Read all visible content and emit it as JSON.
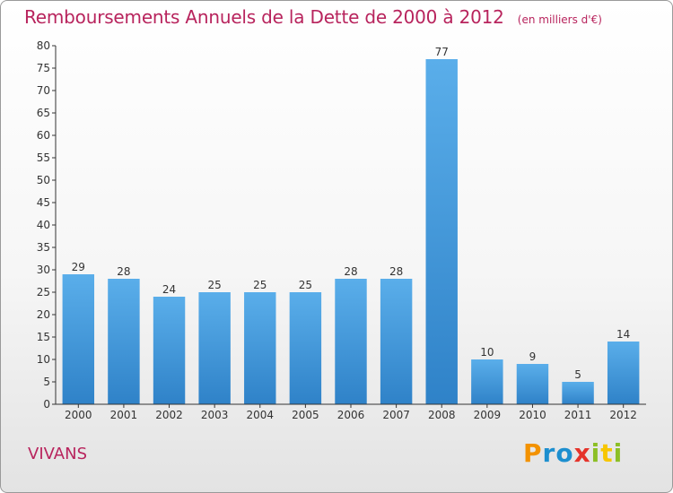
{
  "chart_data": {
    "type": "bar",
    "title": "Remboursements Annuels de la Dette de 2000 à 2012",
    "unit_label": "(en milliers d'€)",
    "categories": [
      "2000",
      "2001",
      "2002",
      "2003",
      "2004",
      "2005",
      "2006",
      "2007",
      "2008",
      "2009",
      "2010",
      "2011",
      "2012"
    ],
    "values": [
      29,
      28,
      24,
      25,
      25,
      25,
      28,
      28,
      77,
      10,
      9,
      5,
      14
    ],
    "ylim": [
      0,
      80
    ],
    "yticks": [
      0,
      5,
      10,
      15,
      20,
      25,
      30,
      35,
      40,
      45,
      50,
      55,
      60,
      65,
      70,
      75,
      80
    ],
    "grid": false,
    "bar_color": "#3a8fd6"
  },
  "footer": {
    "commune": "VIVANS",
    "logo": {
      "text": "Proxiti",
      "letters": [
        "P",
        "r",
        "o",
        "x",
        "i",
        "t",
        "i"
      ],
      "colors": [
        "#f39200",
        "#1d8fcf",
        "#1d8fcf",
        "#e5332a",
        "#8cbf26",
        "#f7c600",
        "#8cbf26"
      ]
    }
  },
  "colors": {
    "title": "#b8245d",
    "axis": "#333333"
  }
}
